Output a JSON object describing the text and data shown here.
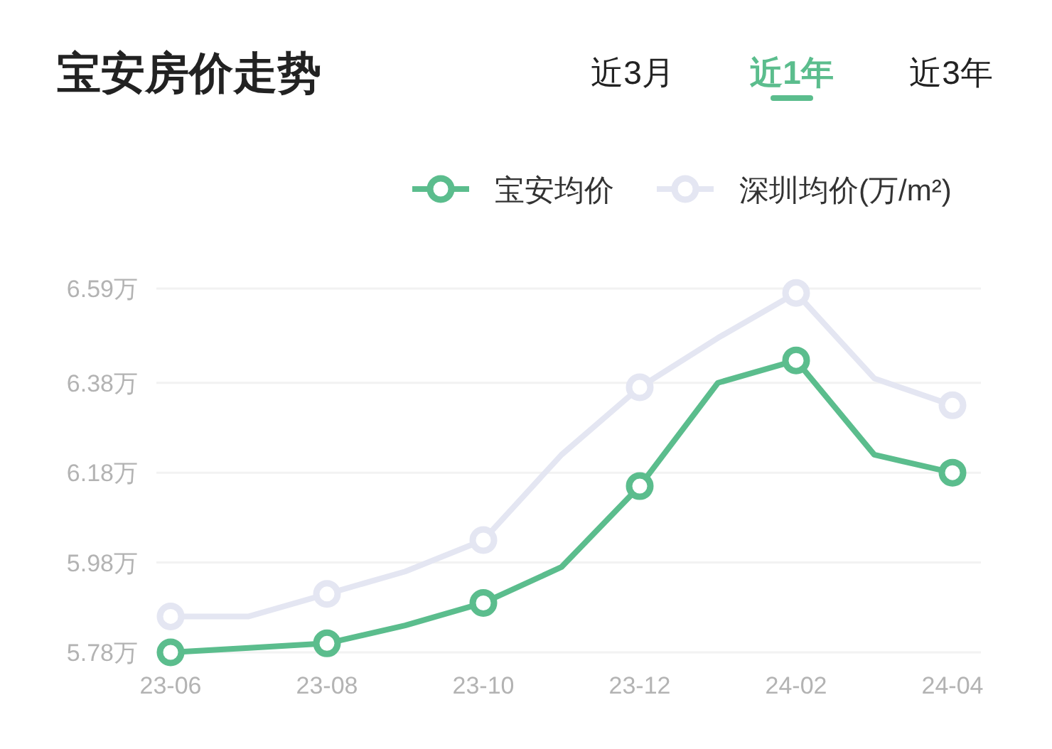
{
  "chart_data": {
    "type": "line",
    "title": "宝安房价走势",
    "annotations": [
      "近3月",
      "近1年",
      "近3年"
    ],
    "categories": [
      "23-06",
      null,
      "23-08",
      null,
      "23-10",
      null,
      "23-12",
      null,
      "24-02",
      null,
      "24-04"
    ],
    "series": [
      {
        "name": "宝安均价",
        "color": "#5bbd8d",
        "values": [
          5.78,
          5.79,
          5.8,
          5.84,
          5.89,
          5.97,
          6.15,
          6.38,
          6.43,
          6.22,
          6.18
        ]
      },
      {
        "name": "深圳均价(万/m²)",
        "color": "#e4e6f2",
        "values": [
          5.86,
          5.86,
          5.91,
          5.96,
          6.03,
          6.22,
          6.37,
          6.48,
          6.58,
          6.39,
          6.33
        ]
      }
    ],
    "ylim": [
      5.78,
      6.59
    ],
    "yticks": [
      {
        "value": 5.78,
        "label": "5.78万"
      },
      {
        "value": 5.98,
        "label": "5.98万"
      },
      {
        "value": 6.18,
        "label": "6.18万"
      },
      {
        "value": 6.38,
        "label": "6.38万"
      },
      {
        "value": 6.59,
        "label": "6.59万"
      }
    ],
    "grid": "y",
    "legend": "top right",
    "marker": "circle",
    "line_style": "solid"
  }
}
